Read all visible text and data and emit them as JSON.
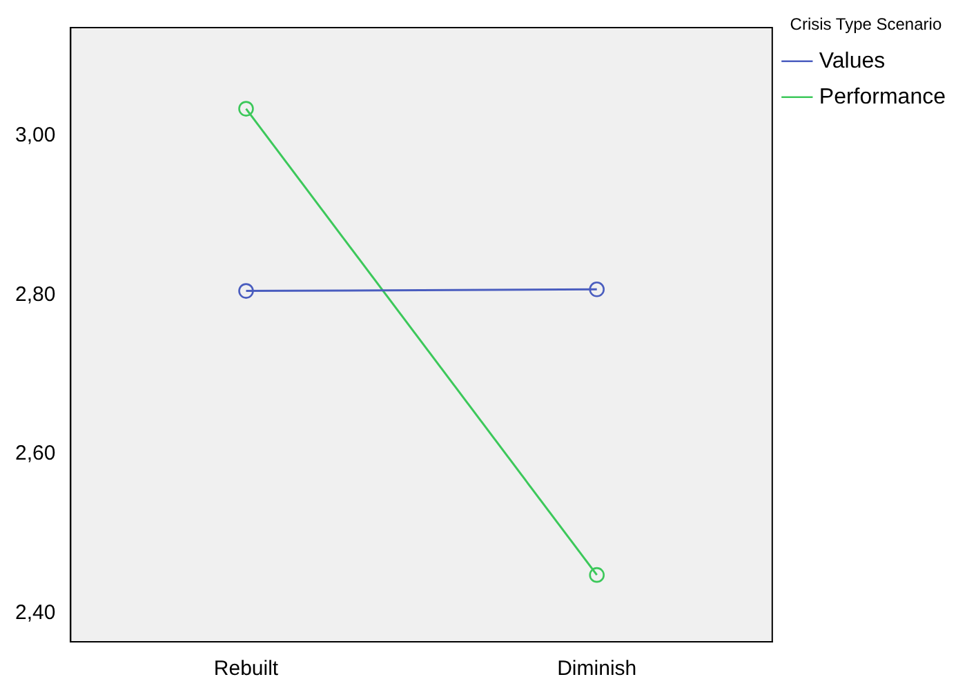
{
  "chart_data": {
    "type": "line",
    "legend_title": "Crisis Type Scenario",
    "categories": [
      "Rebuilt",
      "Diminish"
    ],
    "series": [
      {
        "name": "Values",
        "color": "#4a5dbf",
        "values": [
          2.805,
          2.807
        ]
      },
      {
        "name": "Performance",
        "color": "#3cc85a",
        "values": [
          3.034,
          2.448
        ]
      }
    ],
    "ylim": [
      2.364,
      3.136
    ],
    "yticks": [
      {
        "value": 2.4,
        "label": "2,40"
      },
      {
        "value": 2.6,
        "label": "2,60"
      },
      {
        "value": 2.8,
        "label": "2,80"
      },
      {
        "value": 3.0,
        "label": "3,00"
      }
    ],
    "grid": false,
    "legend": "top right",
    "marker": "circle",
    "line_style": "solid"
  }
}
